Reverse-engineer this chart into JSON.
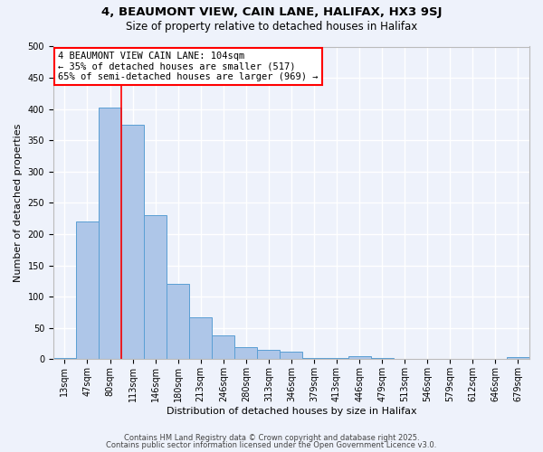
{
  "title1": "4, BEAUMONT VIEW, CAIN LANE, HALIFAX, HX3 9SJ",
  "title2": "Size of property relative to detached houses in Halifax",
  "xlabel": "Distribution of detached houses by size in Halifax",
  "ylabel": "Number of detached properties",
  "bar_labels": [
    "13sqm",
    "47sqm",
    "80sqm",
    "113sqm",
    "146sqm",
    "180sqm",
    "213sqm",
    "246sqm",
    "280sqm",
    "313sqm",
    "346sqm",
    "379sqm",
    "413sqm",
    "446sqm",
    "479sqm",
    "513sqm",
    "546sqm",
    "579sqm",
    "612sqm",
    "646sqm",
    "679sqm"
  ],
  "bar_values": [
    2,
    220,
    403,
    375,
    230,
    120,
    67,
    38,
    20,
    15,
    12,
    2,
    2,
    5,
    2,
    1,
    0,
    0,
    0,
    0,
    3
  ],
  "bar_color": "#aec6e8",
  "bar_edge_color": "#5a9fd4",
  "background_color": "#eef2fb",
  "grid_color": "#ffffff",
  "annotation_box_text": "4 BEAUMONT VIEW CAIN LANE: 104sqm\n← 35% of detached houses are smaller (517)\n65% of semi-detached houses are larger (969) →",
  "red_line_x": 2.5,
  "ylim": [
    0,
    500
  ],
  "yticks": [
    0,
    50,
    100,
    150,
    200,
    250,
    300,
    350,
    400,
    450,
    500
  ],
  "footer1": "Contains HM Land Registry data © Crown copyright and database right 2025.",
  "footer2": "Contains public sector information licensed under the Open Government Licence v3.0.",
  "title_fontsize": 9.5,
  "subtitle_fontsize": 8.5,
  "annot_fontsize": 7.5,
  "axis_label_fontsize": 8,
  "tick_fontsize": 7,
  "footer_fontsize": 6
}
